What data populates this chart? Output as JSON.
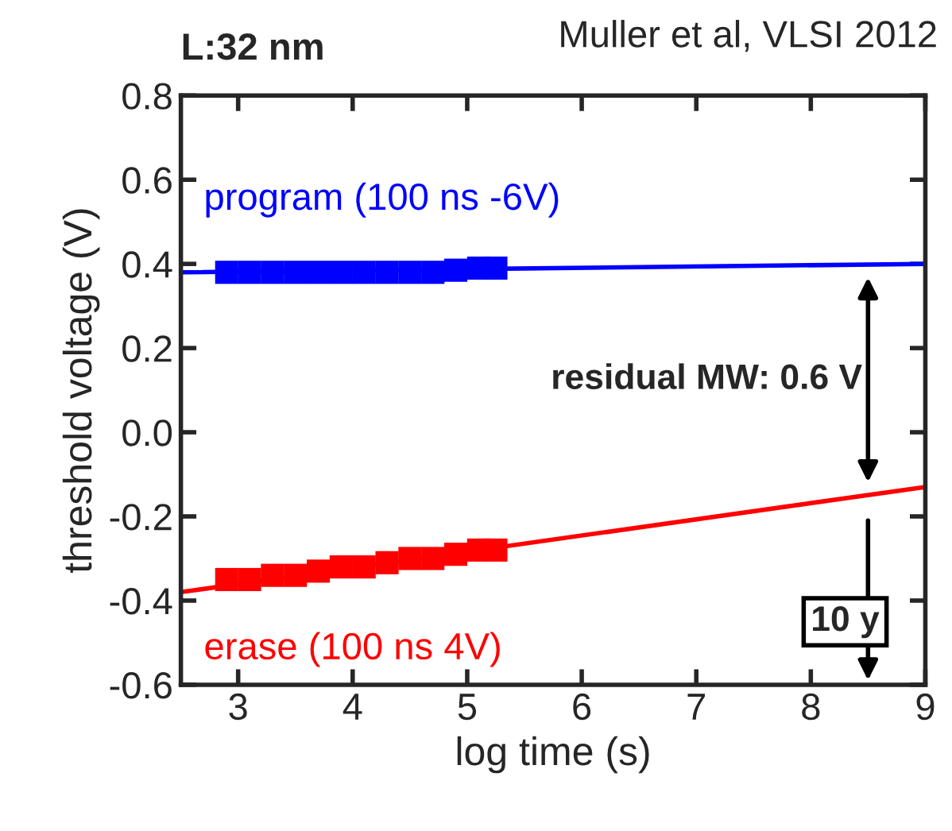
{
  "chart_data": {
    "type": "line",
    "xlabel": "log time (s)",
    "ylabel": "threshold voltage (V)",
    "xlim": [
      2.5,
      9
    ],
    "xticks": [
      3,
      4,
      5,
      6,
      7,
      8,
      9
    ],
    "ylim": [
      -0.6,
      0.8
    ],
    "yticks": [
      -0.6,
      -0.4,
      -0.2,
      {
        "value": 0,
        "label": "0.0"
      },
      0.2,
      0.4,
      0.6,
      0.8
    ],
    "grid": false,
    "legend": false,
    "series": [
      {
        "type": "scatter",
        "marker": "square",
        "name": "program (100 ns -6V)",
        "color": "#0000ff",
        "x": [
          2.9,
          3.1,
          3.3,
          3.5,
          3.7,
          3.9,
          4.1,
          4.3,
          4.5,
          4.7,
          4.9,
          5.1,
          5.25
        ],
        "values": [
          0.38,
          0.38,
          0.38,
          0.38,
          0.38,
          0.38,
          0.38,
          0.38,
          0.38,
          0.38,
          0.385,
          0.39,
          0.39
        ]
      },
      {
        "color": "#0000ff",
        "x": [
          2.5,
          9
        ],
        "values": [
          0.38,
          0.4
        ]
      },
      {
        "type": "scatter",
        "marker": "square",
        "name": "erase (100 ns 4V)",
        "color": "#ff0000",
        "x": [
          2.9,
          3.1,
          3.3,
          3.5,
          3.7,
          3.9,
          4.1,
          4.3,
          4.5,
          4.7,
          4.9,
          5.1,
          5.25
        ],
        "values": [
          -0.35,
          -0.35,
          -0.34,
          -0.34,
          -0.33,
          -0.32,
          -0.32,
          -0.31,
          -0.3,
          -0.3,
          -0.29,
          -0.28,
          -0.28
        ]
      },
      {
        "color": "#ff0000",
        "x": [
          2.5,
          9
        ],
        "values": [
          -0.38,
          -0.13
        ]
      }
    ],
    "annotations": [
      "L:32 nm",
      "Muller et al, VLSI 2012",
      "residual MW: 0.6 V",
      "10 y"
    ]
  }
}
